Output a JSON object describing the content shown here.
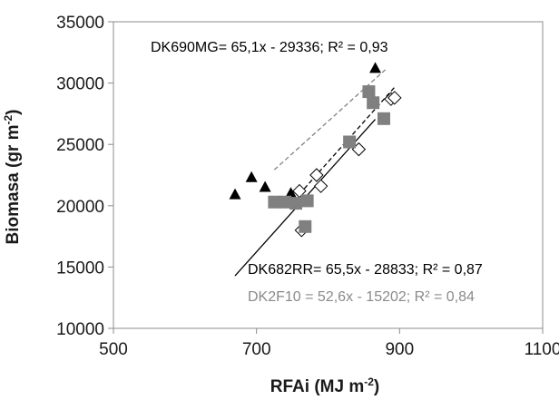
{
  "chart_data": {
    "type": "scatter",
    "xlabel": "RFAi (MJ m-2)",
    "xlabel_main": "RFAi (MJ m",
    "xlabel_sup": "-2",
    "xlabel_tail": ")",
    "ylabel": "Biomasa (gr m-2)",
    "ylabel_main": "Biomasa (gr m",
    "ylabel_sup": "-2",
    "ylabel_tail": ")",
    "xlim": [
      500,
      1100
    ],
    "ylim": [
      10000,
      35000
    ],
    "xticks": [
      500,
      700,
      900,
      1100
    ],
    "yticks": [
      10000,
      15000,
      20000,
      25000,
      30000,
      35000
    ],
    "grid": false,
    "colors": {
      "DK690MG": "#000000",
      "DK682RR": "#000000",
      "DK2F10": "#808080"
    },
    "series": [
      {
        "name": "DK690MG",
        "marker": "filled-triangle",
        "points": [
          [
            670,
            20900
          ],
          [
            693,
            22300
          ],
          [
            712,
            21500
          ],
          [
            748,
            21000
          ],
          [
            866,
            31200
          ]
        ],
        "fit": {
          "slope": 65.1,
          "intercept": -29336,
          "x_range": [
            670,
            866
          ],
          "line": "solid"
        }
      },
      {
        "name": "DK682RR",
        "marker": "open-diamond",
        "points": [
          [
            760,
            21200
          ],
          [
            763,
            18000
          ],
          [
            784,
            22500
          ],
          [
            790,
            21600
          ],
          [
            843,
            24600
          ],
          [
            888,
            28700
          ],
          [
            893,
            28800
          ]
        ],
        "fit": {
          "slope": 65.5,
          "intercept": -28833,
          "x_range": [
            760,
            893
          ],
          "line": "dashed"
        }
      },
      {
        "name": "DK2F10",
        "marker": "filled-square",
        "points": [
          [
            725,
            20300
          ],
          [
            740,
            20300
          ],
          [
            755,
            20200
          ],
          [
            768,
            18300
          ],
          [
            771,
            20400
          ],
          [
            830,
            25200
          ],
          [
            857,
            29300
          ],
          [
            863,
            28400
          ],
          [
            878,
            27100
          ]
        ],
        "fit": {
          "slope": 52.6,
          "intercept": -15202,
          "x_range": [
            725,
            880
          ],
          "line": "dashed"
        }
      }
    ],
    "annotations": [
      "DK690MG= 65,1x - 29336; R² = 0,93",
      "DK682RR= 65,5x - 28833; R² = 0,87",
      "DK2F10 = 52,6x - 15202; R² = 0,84"
    ]
  }
}
